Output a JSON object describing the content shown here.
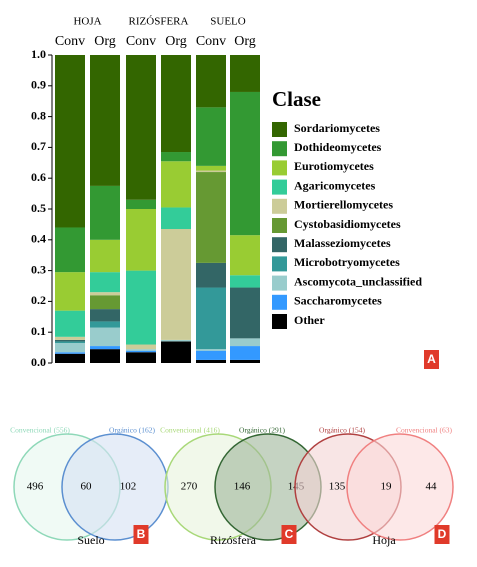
{
  "chart_data": {
    "type": "stacked_bar",
    "groups": [
      "HOJA",
      "RIZÓSFERA",
      "SUELO"
    ],
    "categories": [
      "Conv",
      "Org",
      "Conv",
      "Org",
      "Conv",
      "Org"
    ],
    "legend_title": "Clase",
    "panel_label": "A",
    "ylim": [
      0,
      1
    ],
    "yticks": [
      {
        "value": 0,
        "label": "0.0"
      },
      0.1,
      0.2,
      0.3,
      0.4,
      0.5,
      0.6,
      0.7,
      0.8,
      0.9,
      {
        "value": 1,
        "label": "1.0"
      }
    ],
    "grid": false,
    "series": [
      {
        "name": "Sordariomycetes",
        "color": "#336600",
        "values": [
          0.56,
          0.425,
          0.47,
          0.315,
          0.17,
          0.12
        ]
      },
      {
        "name": "Dothideomycetes",
        "color": "#339933",
        "values": [
          0.145,
          0.175,
          0.03,
          0.03,
          0.19,
          0.465
        ]
      },
      {
        "name": "Eurotiomycetes",
        "color": "#99cc33",
        "values": [
          0.125,
          0.105,
          0.2,
          0.15,
          0.015,
          0.13
        ]
      },
      {
        "name": "Agaricomycetes",
        "color": "#33cc99",
        "values": [
          0.085,
          0.065,
          0.24,
          0.07,
          0,
          0.04
        ]
      },
      {
        "name": "Mortierellomycetes",
        "color": "#cccc99",
        "values": [
          0.01,
          0.01,
          0.015,
          0.36,
          0.005,
          0
        ]
      },
      {
        "name": "Cystobasidiomycetes",
        "color": "#669933",
        "values": [
          0,
          0.045,
          0,
          0,
          0.295,
          0
        ]
      },
      {
        "name": "Malasseziomycetes",
        "color": "#336666",
        "values": [
          0.005,
          0.04,
          0,
          0,
          0.08,
          0.165
        ]
      },
      {
        "name": "Microbotryomycetes",
        "color": "#339999",
        "values": [
          0.005,
          0.02,
          0,
          0,
          0.2,
          0
        ]
      },
      {
        "name": "Ascomycota_unclassified",
        "color": "#99cccc",
        "values": [
          0.03,
          0.06,
          0.005,
          0.005,
          0.005,
          0.025
        ]
      },
      {
        "name": "Saccharomycetes",
        "color": "#3399ff",
        "values": [
          0.005,
          0.01,
          0.005,
          0,
          0.03,
          0.045
        ]
      },
      {
        "name": "Other",
        "color": "#000000",
        "values": [
          0.03,
          0.045,
          0.035,
          0.07,
          0.01,
          0.01
        ]
      }
    ]
  },
  "venns": [
    {
      "left_label": "Convencional (556)",
      "right_label": "Orgánico (162)",
      "left_only": "496",
      "both": "60",
      "right_only": "102",
      "name": "Suelo",
      "panel_label": "B"
    },
    {
      "left_label": "Convencional (416)",
      "right_label": "Orgánico (291)",
      "left_only": "270",
      "both": "146",
      "right_only": "145",
      "name": "Rizósfera",
      "panel_label": "C"
    },
    {
      "left_label": "Orgánico (154)",
      "right_label": "Convencional (63)",
      "left_only": "135",
      "both": "19",
      "right_only": "44",
      "name": "Hoja",
      "panel_label": "D"
    }
  ]
}
